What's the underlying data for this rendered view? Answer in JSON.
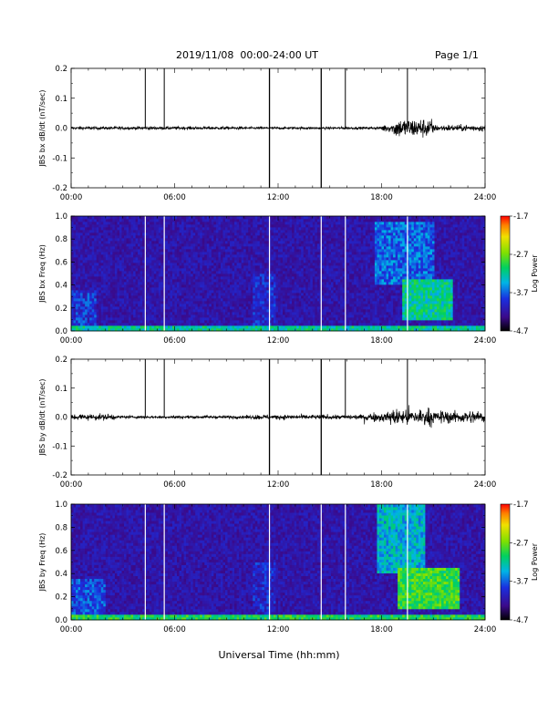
{
  "header": {
    "title": "2019/11/08  00:00-24:00 UT",
    "page": "Page 1/1"
  },
  "x_axis_title": "Universal Time (hh:mm)",
  "colors": {
    "trace": "#000000",
    "frame": "#000000",
    "spectrogram_background": "#1a0a4a",
    "event_line_in_spectrogram": "#ffffff"
  },
  "chart_data": [
    {
      "type": "line",
      "ylabel": "JBS bx dB/dt (nT/sec)",
      "xlim": [
        0,
        24
      ],
      "x_tick_labels": [
        "00:00",
        "06:00",
        "12:00",
        "18:00",
        "24:00"
      ],
      "ylim": [
        -0.2,
        0.2
      ],
      "y_ticks": [
        -0.2,
        -0.1,
        0.0,
        0.1,
        0.2
      ],
      "y_tick_labels": [
        "-0.2",
        "-0.1",
        "0.0",
        "0.1",
        "0.2"
      ],
      "noise_profile": [
        {
          "from": 0,
          "to": 10,
          "amplitude": 0.01
        },
        {
          "from": 10,
          "to": 18,
          "amplitude": 0.008
        },
        {
          "from": 18,
          "to": 18.7,
          "amplitude": 0.025
        },
        {
          "from": 18.7,
          "to": 21,
          "amplitude": 0.06
        },
        {
          "from": 21,
          "to": 24,
          "amplitude": 0.02
        }
      ],
      "spikes": [
        {
          "time": 4.3,
          "min": 0.0,
          "max": 0.2
        },
        {
          "time": 5.4,
          "min": 0.0,
          "max": 0.2
        },
        {
          "time": 11.5,
          "min": -0.2,
          "max": 0.2
        },
        {
          "time": 14.5,
          "min": -0.2,
          "max": 0.2
        },
        {
          "time": 15.9,
          "min": 0.0,
          "max": 0.2
        },
        {
          "time": 19.5,
          "min": 0.0,
          "max": 0.2
        }
      ]
    },
    {
      "type": "heatmap",
      "ylabel": "JBS bx Freq (Hz)",
      "xlim": [
        0,
        24
      ],
      "x_tick_labels": [
        "00:00",
        "06:00",
        "12:00",
        "18:00",
        "24:00"
      ],
      "ylim": [
        0,
        1.0
      ],
      "y_ticks": [
        0.0,
        0.2,
        0.4,
        0.6,
        0.8,
        1.0
      ],
      "y_tick_labels": [
        "0.0",
        "0.2",
        "0.4",
        "0.6",
        "0.8",
        "1.0"
      ],
      "colorbar_label": "Log Power",
      "colorbar_range": [
        -4.7,
        -1.7
      ],
      "colorbar_tick_labels": [
        "-1.7",
        "-2.7",
        "-3.7",
        "-4.7"
      ],
      "event_lines": [
        4.3,
        5.4,
        11.5,
        14.5,
        15.9,
        19.5
      ],
      "intensity_regions": [
        {
          "from": 0,
          "to": 24,
          "fmin": 0.0,
          "fmax": 0.05,
          "level": -3.2
        },
        {
          "from": 0,
          "to": 1.5,
          "fmin": 0.05,
          "fmax": 0.35,
          "level": -3.9
        },
        {
          "from": 10.5,
          "to": 11.8,
          "fmin": 0.05,
          "fmax": 0.5,
          "level": -4.0
        },
        {
          "from": 17.6,
          "to": 21.0,
          "fmin": 0.4,
          "fmax": 0.95,
          "level": -3.7
        },
        {
          "from": 19.2,
          "to": 22.2,
          "fmin": 0.1,
          "fmax": 0.45,
          "level": -3.2
        }
      ]
    },
    {
      "type": "line",
      "ylabel": "JBS by dB/dt (nT/sec)",
      "xlim": [
        0,
        24
      ],
      "x_tick_labels": [
        "00:00",
        "06:00",
        "12:00",
        "18:00",
        "24:00"
      ],
      "ylim": [
        -0.2,
        0.2
      ],
      "y_ticks": [
        -0.2,
        -0.1,
        0.0,
        0.1,
        0.2
      ],
      "y_tick_labels": [
        "-0.2",
        "-0.1",
        "0.0",
        "0.1",
        "0.2"
      ],
      "noise_profile": [
        {
          "from": 0,
          "to": 2.5,
          "amplitude": 0.02
        },
        {
          "from": 2.5,
          "to": 10.5,
          "amplitude": 0.01
        },
        {
          "from": 10.5,
          "to": 17,
          "amplitude": 0.015
        },
        {
          "from": 17,
          "to": 18.5,
          "amplitude": 0.03
        },
        {
          "from": 18.5,
          "to": 21,
          "amplitude": 0.055
        },
        {
          "from": 21,
          "to": 24,
          "amplitude": 0.04
        }
      ],
      "spikes": [
        {
          "time": 4.3,
          "min": 0.0,
          "max": 0.2
        },
        {
          "time": 5.4,
          "min": 0.0,
          "max": 0.2
        },
        {
          "time": 11.5,
          "min": -0.2,
          "max": 0.2
        },
        {
          "time": 14.5,
          "min": -0.2,
          "max": 0.2
        },
        {
          "time": 15.9,
          "min": 0.0,
          "max": 0.2
        },
        {
          "time": 19.5,
          "min": 0.0,
          "max": 0.2
        }
      ]
    },
    {
      "type": "heatmap",
      "ylabel": "JBS by Freq (Hz)",
      "xlim": [
        0,
        24
      ],
      "x_tick_labels": [
        "00:00",
        "06:00",
        "12:00",
        "18:00",
        "24:00"
      ],
      "ylim": [
        0,
        1.0
      ],
      "y_ticks": [
        0.0,
        0.2,
        0.4,
        0.6,
        0.8,
        1.0
      ],
      "y_tick_labels": [
        "0.0",
        "0.2",
        "0.4",
        "0.6",
        "0.8",
        "1.0"
      ],
      "colorbar_label": "Log Power",
      "colorbar_range": [
        -4.7,
        -1.7
      ],
      "colorbar_tick_labels": [
        "-1.7",
        "-2.7",
        "-3.7",
        "-4.7"
      ],
      "event_lines": [
        4.3,
        5.4,
        11.5,
        14.5,
        15.9,
        19.5
      ],
      "intensity_regions": [
        {
          "from": 0,
          "to": 24,
          "fmin": 0.0,
          "fmax": 0.05,
          "level": -3.0
        },
        {
          "from": 0,
          "to": 2.0,
          "fmin": 0.05,
          "fmax": 0.35,
          "level": -3.8
        },
        {
          "from": 10.5,
          "to": 11.8,
          "fmin": 0.05,
          "fmax": 0.5,
          "level": -4.0
        },
        {
          "from": 17.8,
          "to": 20.5,
          "fmin": 0.4,
          "fmax": 1.0,
          "level": -3.4
        },
        {
          "from": 19.0,
          "to": 22.5,
          "fmin": 0.1,
          "fmax": 0.45,
          "level": -2.9
        }
      ]
    }
  ]
}
